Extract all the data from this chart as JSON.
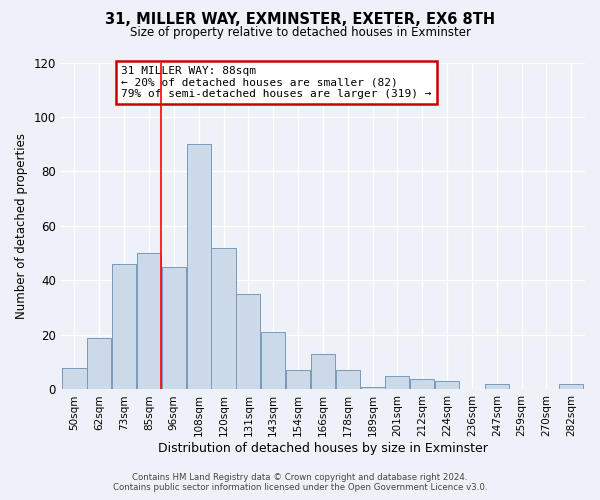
{
  "title": "31, MILLER WAY, EXMINSTER, EXETER, EX6 8TH",
  "subtitle": "Size of property relative to detached houses in Exminster",
  "xlabel": "Distribution of detached houses by size in Exminster",
  "ylabel": "Number of detached properties",
  "bin_labels": [
    "50sqm",
    "62sqm",
    "73sqm",
    "85sqm",
    "96sqm",
    "108sqm",
    "120sqm",
    "131sqm",
    "143sqm",
    "154sqm",
    "166sqm",
    "178sqm",
    "189sqm",
    "201sqm",
    "212sqm",
    "224sqm",
    "236sqm",
    "247sqm",
    "259sqm",
    "270sqm",
    "282sqm"
  ],
  "bar_heights": [
    8,
    19,
    46,
    50,
    45,
    90,
    52,
    35,
    21,
    7,
    13,
    7,
    1,
    5,
    4,
    3,
    0,
    2,
    0,
    0,
    2
  ],
  "bar_color": "#ccd9e8",
  "bar_edge_color": "#7799bb",
  "ylim": [
    0,
    120
  ],
  "yticks": [
    0,
    20,
    40,
    60,
    80,
    100,
    120
  ],
  "property_line_idx": 3,
  "annotation_title": "31 MILLER WAY: 88sqm",
  "annotation_line1": "← 20% of detached houses are smaller (82)",
  "annotation_line2": "79% of semi-detached houses are larger (319) →",
  "annotation_box_color": "#ffffff",
  "annotation_box_edge": "#cc0000",
  "footer1": "Contains HM Land Registry data © Crown copyright and database right 2024.",
  "footer2": "Contains public sector information licensed under the Open Government Licence v3.0.",
  "background_color": "#eef2f8"
}
